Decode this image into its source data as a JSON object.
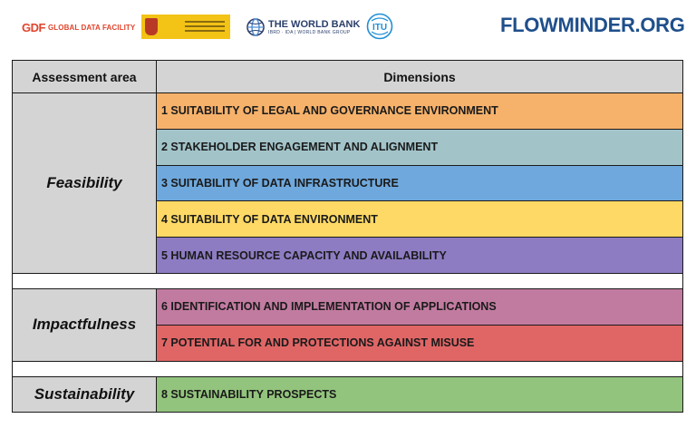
{
  "logos": {
    "gdf_mark": "GDF",
    "gdf_text": "GLOBAL DATA FACILITY",
    "spain_name": "spain-government-logo",
    "worldbank_title": "THE WORLD BANK",
    "worldbank_sub": "IBRD · IDA | WORLD BANK GROUP",
    "itu_text": "ITU",
    "flowminder": "FLOWMINDER.ORG"
  },
  "table": {
    "header": {
      "area": "Assessment area",
      "dimensions": "Dimensions"
    },
    "groups": [
      {
        "area": "Feasibility",
        "dimensions": [
          {
            "label": "1 SUITABILITY OF LEGAL AND GOVERNANCE ENVIRONMENT",
            "color": "#f6b26b"
          },
          {
            "label": "2 STAKEHOLDER ENGAGEMENT AND ALIGNMENT",
            "color": "#a2c4c9"
          },
          {
            "label": "3 SUITABILITY OF DATA INFRASTRUCTURE",
            "color": "#6fa8dc"
          },
          {
            "label": "4 SUITABILITY OF DATA ENVIRONMENT",
            "color": "#ffd966"
          },
          {
            "label": "5 HUMAN RESOURCE CAPACITY AND AVAILABILITY",
            "color": "#8e7cc3"
          }
        ]
      },
      {
        "area": "Impactfulness",
        "dimensions": [
          {
            "label": "6 IDENTIFICATION AND IMPLEMENTATION OF APPLICATIONS",
            "color": "#c27ba0"
          },
          {
            "label": "7 POTENTIAL FOR AND PROTECTIONS AGAINST MISUSE",
            "color": "#e06666"
          }
        ]
      },
      {
        "area": "Sustainability",
        "dimensions": [
          {
            "label": "8 SUSTAINABILITY PROSPECTS",
            "color": "#93c47d"
          }
        ]
      }
    ]
  }
}
